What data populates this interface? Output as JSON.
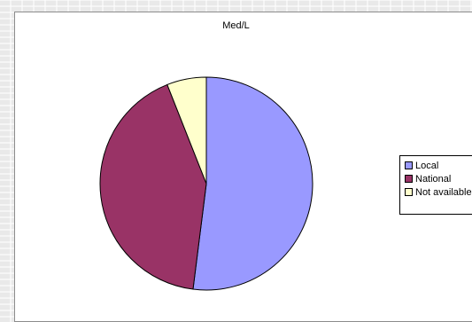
{
  "chart_data": {
    "type": "pie",
    "title": "Med/L",
    "slices": [
      {
        "label": "Local",
        "value": 52,
        "color": "#9999ff"
      },
      {
        "label": "National",
        "value": 42,
        "color": "#993366"
      },
      {
        "label": "Not available",
        "value": 6,
        "color": "#ffffcc"
      }
    ],
    "legend": "right"
  }
}
